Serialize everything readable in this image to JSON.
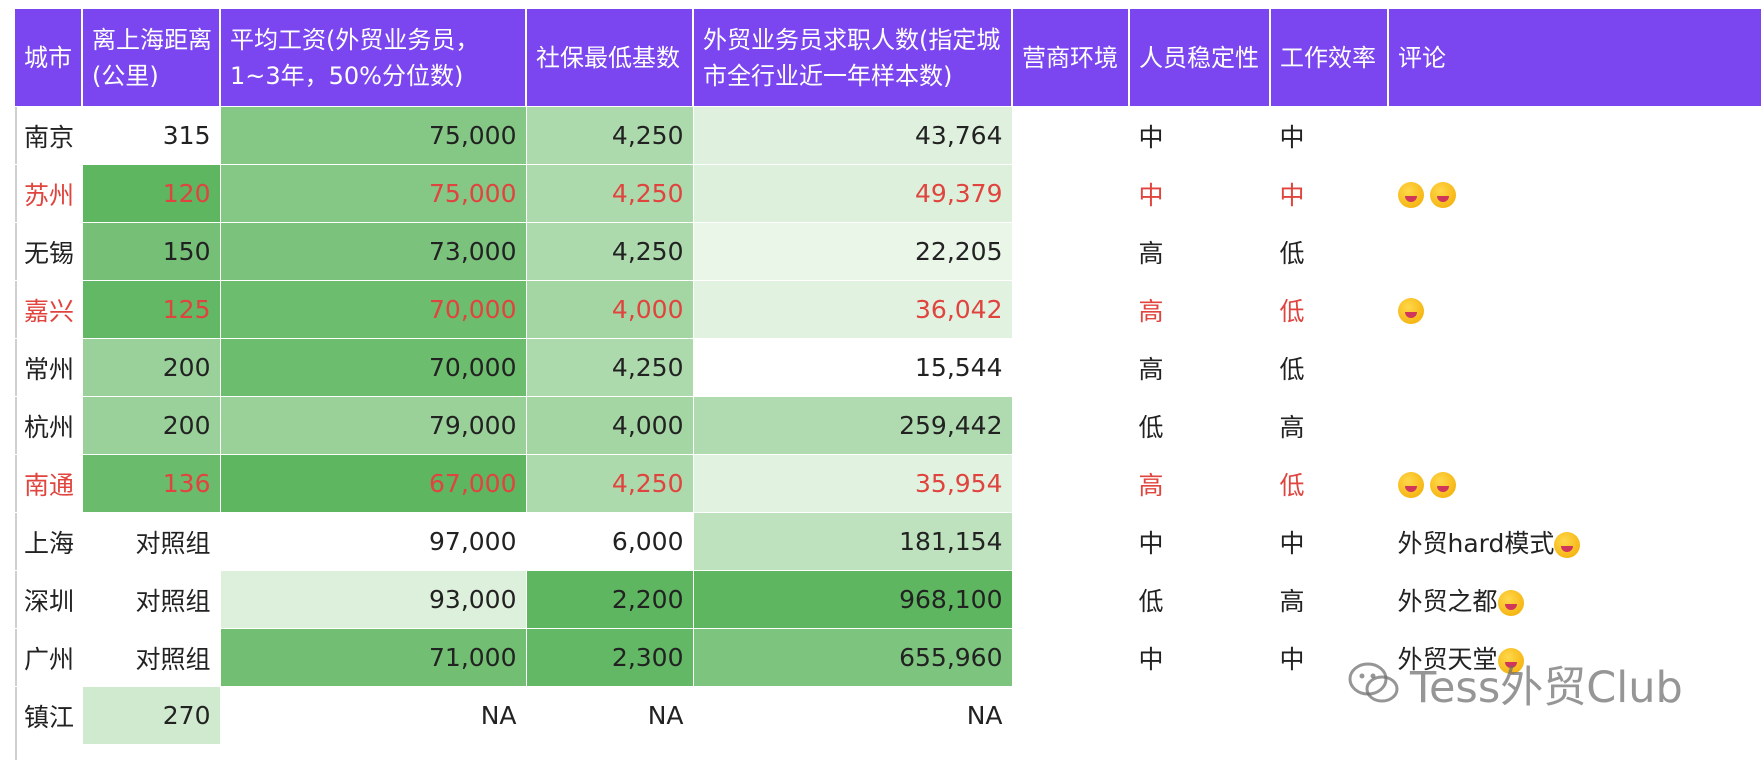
{
  "headers": [
    "城市",
    "离上海距离(公里)",
    "平均工资(外贸业务员，1~3年，50%分位数)",
    "社保最低基数",
    "外贸业务员求职人数(指定城市全行业近一年样本数)",
    "营商环境",
    "人员稳定性",
    "工作效率",
    "评论"
  ],
  "rows": [
    {
      "city": "南京",
      "distance": "315",
      "salary": "75,000",
      "social": "4,250",
      "applicants": "43,764",
      "business": "",
      "stability": "中",
      "efficiency": "中",
      "comment": "",
      "emoji_count": 0,
      "highlight": false
    },
    {
      "city": "苏州",
      "distance": "120",
      "salary": "75,000",
      "social": "4,250",
      "applicants": "49,379",
      "business": "",
      "stability": "中",
      "efficiency": "中",
      "comment": "",
      "emoji_count": 2,
      "highlight": true
    },
    {
      "city": "无锡",
      "distance": "150",
      "salary": "73,000",
      "social": "4,250",
      "applicants": "22,205",
      "business": "",
      "stability": "高",
      "efficiency": "低",
      "comment": "",
      "emoji_count": 0,
      "highlight": false
    },
    {
      "city": "嘉兴",
      "distance": "125",
      "salary": "70,000",
      "social": "4,000",
      "applicants": "36,042",
      "business": "",
      "stability": "高",
      "efficiency": "低",
      "comment": "",
      "emoji_count": 1,
      "highlight": true
    },
    {
      "city": "常州",
      "distance": "200",
      "salary": "70,000",
      "social": "4,250",
      "applicants": "15,544",
      "business": "",
      "stability": "高",
      "efficiency": "低",
      "comment": "",
      "emoji_count": 0,
      "highlight": false
    },
    {
      "city": "杭州",
      "distance": "200",
      "salary": "79,000",
      "social": "4,000",
      "applicants": "259,442",
      "business": "",
      "stability": "低",
      "efficiency": "高",
      "comment": "",
      "emoji_count": 0,
      "highlight": false
    },
    {
      "city": "南通",
      "distance": "136",
      "salary": "67,000",
      "social": "4,250",
      "applicants": "35,954",
      "business": "",
      "stability": "高",
      "efficiency": "低",
      "comment": "",
      "emoji_count": 2,
      "highlight": true
    },
    {
      "city": "上海",
      "distance": "对照组",
      "salary": "97,000",
      "social": "6,000",
      "applicants": "181,154",
      "business": "",
      "stability": "中",
      "efficiency": "中",
      "comment": "外贸hard模式",
      "emoji_count": 1,
      "highlight": false
    },
    {
      "city": "深圳",
      "distance": "对照组",
      "salary": "93,000",
      "social": "2,200",
      "applicants": "968,100",
      "business": "",
      "stability": "低",
      "efficiency": "高",
      "comment": "外贸之都",
      "emoji_count": 1,
      "highlight": false
    },
    {
      "city": "广州",
      "distance": "对照组",
      "salary": "71,000",
      "social": "2,300",
      "applicants": "655,960",
      "business": "",
      "stability": "中",
      "efficiency": "中",
      "comment": "外贸天堂",
      "emoji_count": 1,
      "highlight": false
    },
    {
      "city": "镇江",
      "distance": "270",
      "salary": "NA",
      "social": "NA",
      "applicants": "NA",
      "business": "",
      "stability": "",
      "efficiency": "",
      "comment": "",
      "emoji_count": 0,
      "highlight": false
    }
  ],
  "colors": {
    "header_bg": "#7b46ef",
    "highlight_text": "#e0443e",
    "scale_light": "#f1f9ef",
    "scale_dark": "#5eb660"
  },
  "watermark": {
    "text": "Tess外贸Club",
    "icon": "wechat-icon"
  }
}
